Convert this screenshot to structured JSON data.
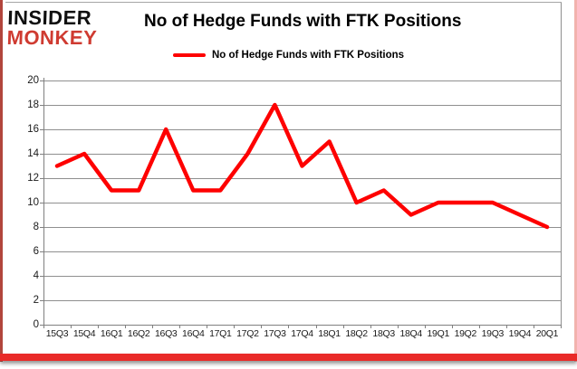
{
  "logo": {
    "line1": "INSIDER",
    "line2": "MONKEY"
  },
  "title": "No of Hedge Funds with FTK Positions",
  "legend": {
    "label": "No of Hedge Funds with FTK Positions"
  },
  "colors": {
    "series": "#fe0000",
    "grid": "#8f8f8f",
    "axis": "#808080",
    "axis_text": "#1a1a1a",
    "logo_black": "#101010",
    "logo_red": "#cf3b31",
    "bottom_bar": "#e92a28",
    "frame_left": "#b2453c",
    "frame_right": "#f2b3ae"
  },
  "chart_data": {
    "type": "line",
    "title": "No of Hedge Funds with FTK Positions",
    "categories": [
      "15Q3",
      "15Q4",
      "16Q1",
      "16Q2",
      "16Q3",
      "16Q4",
      "17Q1",
      "17Q2",
      "17Q3",
      "17Q4",
      "18Q1",
      "18Q2",
      "18Q3",
      "18Q4",
      "19Q1",
      "19Q2",
      "19Q3",
      "19Q4",
      "20Q1"
    ],
    "series": [
      {
        "name": "No of Hedge Funds with FTK Positions",
        "values": [
          13,
          14,
          11,
          11,
          16,
          11,
          11,
          14,
          18,
          13,
          15,
          10,
          11,
          9,
          10,
          10,
          10,
          9,
          8
        ]
      }
    ],
    "xlabel": "",
    "ylabel": "",
    "ylim": [
      0,
      20
    ],
    "y_ticks": [
      0,
      2,
      4,
      6,
      8,
      10,
      12,
      14,
      16,
      18,
      20
    ],
    "grid": true,
    "legend_position": "top-center"
  }
}
